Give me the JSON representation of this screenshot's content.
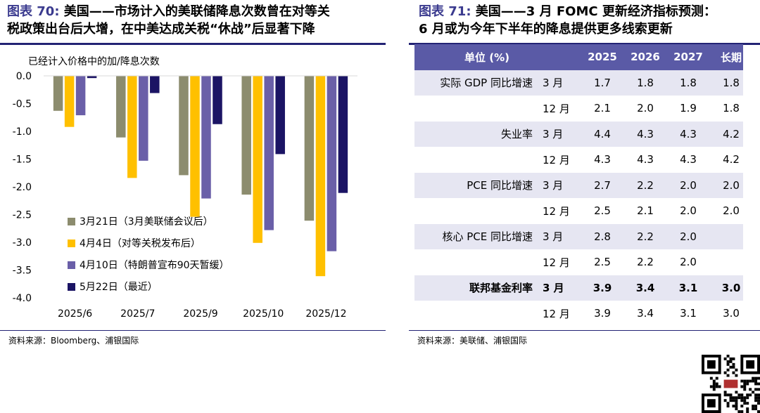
{
  "left": {
    "fig_label": "图表 70:",
    "title_line1": "美国——市场计入的美联储降息次数曾在对等关",
    "title_line2": "税政策出台后大增，在中美达成关税“休战”后显著下降",
    "source": "资料来源：Bloomberg、浦银国际"
  },
  "right": {
    "fig_label": "图表 71:",
    "title_line1": "美国——3 月 FOMC 更新经济指标预测：",
    "title_line2": "6 月或为今年下半年的降息提供更多线索更新",
    "source": "资料来源：美联储、浦银国际",
    "table": {
      "header": [
        "单位 (%)",
        "2025",
        "2026",
        "2027",
        "长期"
      ],
      "rows": [
        {
          "label": "实际 GDP 同比增速",
          "month": "3 月",
          "values": [
            "1.7",
            "1.8",
            "1.8",
            "1.8"
          ],
          "shade": true,
          "bold": false
        },
        {
          "label": "",
          "month": "12 月",
          "values": [
            "2.1",
            "2.0",
            "1.9",
            "1.8"
          ],
          "shade": false,
          "bold": false
        },
        {
          "label": "失业率",
          "month": "3 月",
          "values": [
            "4.4",
            "4.3",
            "4.3",
            "4.2"
          ],
          "shade": true,
          "bold": false
        },
        {
          "label": "",
          "month": "12 月",
          "values": [
            "4.3",
            "4.3",
            "4.3",
            "4.2"
          ],
          "shade": false,
          "bold": false
        },
        {
          "label": "PCE 同比增速",
          "month": "3 月",
          "values": [
            "2.7",
            "2.2",
            "2.0",
            "2.0"
          ],
          "shade": true,
          "bold": false
        },
        {
          "label": "",
          "month": "12 月",
          "values": [
            "2.5",
            "2.1",
            "2.0",
            "2.0"
          ],
          "shade": false,
          "bold": false
        },
        {
          "label": "核心 PCE 同比增速",
          "month": "3 月",
          "values": [
            "2.8",
            "2.2",
            "2.0",
            ""
          ],
          "shade": true,
          "bold": false
        },
        {
          "label": "",
          "month": "12 月",
          "values": [
            "2.5",
            "2.2",
            "2.0",
            ""
          ],
          "shade": false,
          "bold": false
        },
        {
          "label": "联邦基金利率",
          "month": "3 月",
          "values": [
            "3.9",
            "3.4",
            "3.1",
            "3.0"
          ],
          "shade": true,
          "bold": true
        },
        {
          "label": "",
          "month": "12 月",
          "values": [
            "3.9",
            "3.4",
            "3.1",
            "3.0"
          ],
          "shade": false,
          "bold": false
        }
      ]
    }
  },
  "colors": {
    "accent": "#232374",
    "header_bg": "#5a5aa6",
    "row_shade": "#e6e6f2",
    "title_fig": "#3b3b8f"
  },
  "chart_data": {
    "type": "bar",
    "title": "",
    "ylabel": "已经计入价格中的加/降息次数",
    "categories": [
      "2025/6",
      "2025/7",
      "2025/9",
      "2025/10",
      "2025/12"
    ],
    "ylim": [
      -4.0,
      0.0
    ],
    "yticks": [
      "0.0",
      "-0.5",
      "-1.0",
      "-1.5",
      "-2.0",
      "-2.5",
      "-3.0",
      "-3.5",
      "-4.0"
    ],
    "legend_position": "bottom-left",
    "grid": false,
    "series": [
      {
        "name": "3月21日（3月美联储会议后）",
        "color": "#8c8c6e",
        "values": [
          -0.63,
          -1.11,
          -1.79,
          -2.14,
          -2.61
        ]
      },
      {
        "name": "4月4日（对等关税发布后）",
        "color": "#ffc000",
        "values": [
          -0.92,
          -1.84,
          -2.54,
          -3.01,
          -3.61
        ]
      },
      {
        "name": "4月10日（特朗普宣布90天暂缓）",
        "color": "#6a5fa8",
        "values": [
          -0.71,
          -1.53,
          -2.21,
          -2.78,
          -3.16
        ]
      },
      {
        "name": "5月22日（最近）",
        "color": "#1b1464",
        "values": [
          -0.04,
          -0.31,
          -0.87,
          -1.41,
          -2.11
        ]
      }
    ]
  }
}
